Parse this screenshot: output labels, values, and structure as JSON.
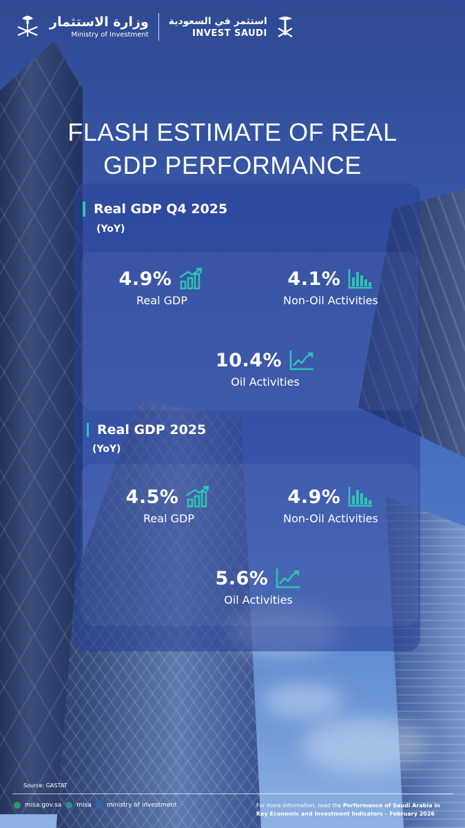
{
  "header": {
    "ministry_ar": "وزارة الاستثمار",
    "ministry_en": "Ministry of Investment",
    "invest_ar": "استثمر في السعودية",
    "invest_en": "INVEST SAUDI"
  },
  "title_line1": "FLASH ESTIMATE OF REAL",
  "title_line2": "GDP PERFORMANCE",
  "sections": [
    {
      "title": "Real GDP Q4 2025",
      "subtitle": "(YoY)",
      "stats": [
        {
          "value": "4.9%",
          "label": "Real GDP",
          "icon": "growth-bar-chart-icon"
        },
        {
          "value": "4.1%",
          "label": "Non-Oil Activities",
          "icon": "bar-chart-icon"
        },
        {
          "value": "10.4%",
          "label": "Oil Activities",
          "icon": "line-chart-icon"
        }
      ]
    },
    {
      "title": "Real GDP 2025",
      "subtitle": "(YoY)",
      "stats": [
        {
          "value": "4.5%",
          "label": "Real GDP",
          "icon": "growth-bar-chart-icon"
        },
        {
          "value": "4.9%",
          "label": "Non-Oil Activities",
          "icon": "bar-chart-icon"
        },
        {
          "value": "5.6%",
          "label": "Oil Activities",
          "icon": "line-chart-icon"
        }
      ]
    }
  ],
  "footer": {
    "source": "Source: GASTAT",
    "social": [
      "misa.gov.sa",
      "misa",
      "ministry of investment"
    ],
    "more_info_prefix": "For more information, read the",
    "report_title": "Performance of Saudi Arabia in Key Economic and Investment Indicators –  February 2026"
  },
  "colors": {
    "accent": "#2cc5b3",
    "panel": "#2a4196"
  }
}
